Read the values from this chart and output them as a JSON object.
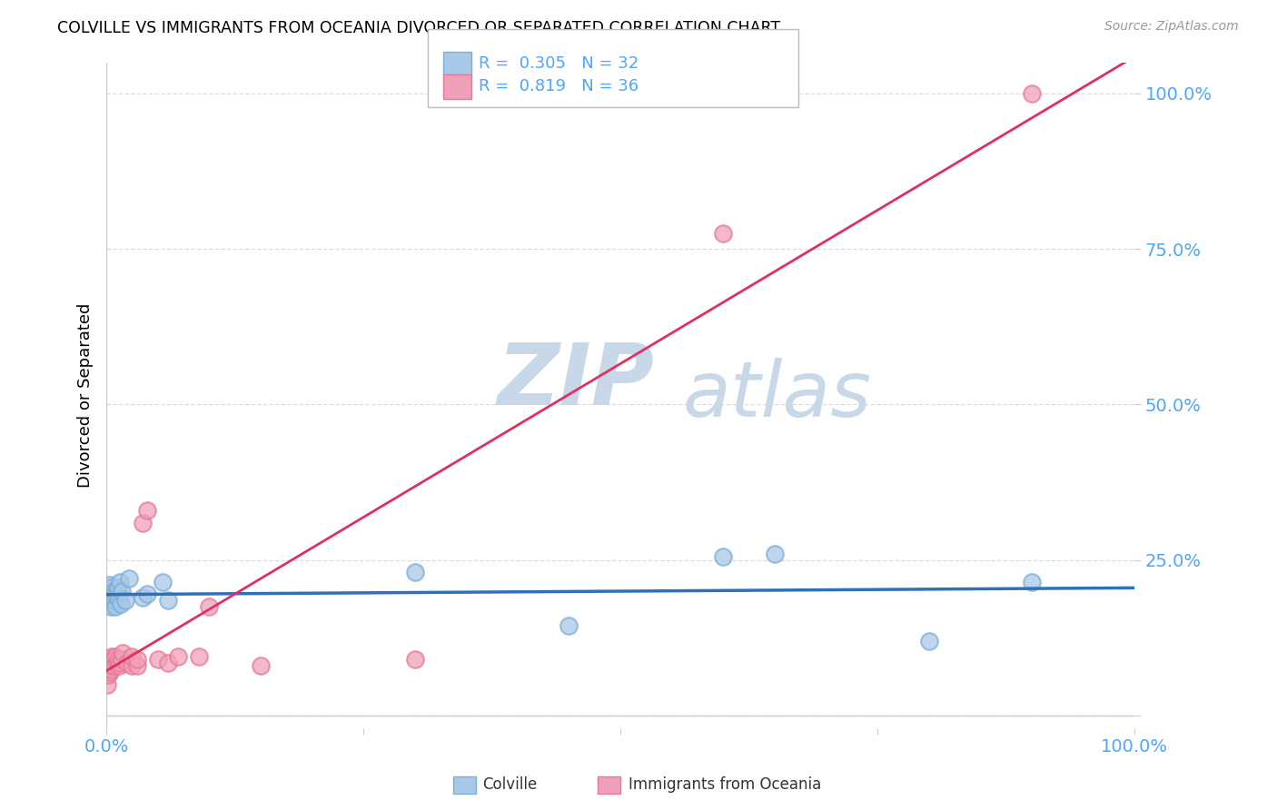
{
  "title": "COLVILLE VS IMMIGRANTS FROM OCEANIA DIVORCED OR SEPARATED CORRELATION CHART",
  "source": "Source: ZipAtlas.com",
  "ylabel": "Divorced or Separated",
  "legend_colville": "Colville",
  "legend_oceania": "Immigrants from Oceania",
  "r_colville": "0.305",
  "n_colville": "32",
  "r_oceania": "0.819",
  "n_oceania": "36",
  "colville_color": "#a8c8e8",
  "oceania_color": "#f0a0b8",
  "colville_edge_color": "#7baed6",
  "oceania_edge_color": "#e87898",
  "colville_line_color": "#3070b8",
  "oceania_line_color": "#e03060",
  "watermark_zip_color": "#c8d8e8",
  "watermark_atlas_color": "#c8d8e8",
  "ytick_color": "#4da6ff",
  "xtick_color": "#4da6ff",
  "colville_x": [
    0.001,
    0.002,
    0.003,
    0.003,
    0.004,
    0.004,
    0.005,
    0.005,
    0.006,
    0.007,
    0.008,
    0.008,
    0.009,
    0.01,
    0.01,
    0.011,
    0.012,
    0.013,
    0.014,
    0.015,
    0.018,
    0.022,
    0.035,
    0.04,
    0.055,
    0.06,
    0.3,
    0.45,
    0.6,
    0.65,
    0.8,
    0.9
  ],
  "colville_y": [
    0.185,
    0.195,
    0.18,
    0.21,
    0.195,
    0.175,
    0.185,
    0.205,
    0.19,
    0.2,
    0.195,
    0.185,
    0.175,
    0.2,
    0.19,
    0.205,
    0.185,
    0.215,
    0.18,
    0.2,
    0.185,
    0.22,
    0.19,
    0.195,
    0.215,
    0.185,
    0.23,
    0.145,
    0.255,
    0.26,
    0.12,
    0.215
  ],
  "oceania_x": [
    0.001,
    0.001,
    0.002,
    0.002,
    0.003,
    0.003,
    0.004,
    0.004,
    0.005,
    0.005,
    0.006,
    0.007,
    0.008,
    0.009,
    0.01,
    0.011,
    0.012,
    0.013,
    0.015,
    0.016,
    0.02,
    0.025,
    0.025,
    0.03,
    0.03,
    0.035,
    0.04,
    0.05,
    0.06,
    0.07,
    0.09,
    0.1,
    0.15,
    0.3,
    0.6,
    0.9
  ],
  "oceania_y": [
    0.05,
    0.08,
    0.065,
    0.09,
    0.07,
    0.085,
    0.075,
    0.09,
    0.08,
    0.095,
    0.085,
    0.09,
    0.08,
    0.095,
    0.085,
    0.09,
    0.08,
    0.085,
    0.09,
    0.1,
    0.085,
    0.08,
    0.095,
    0.08,
    0.09,
    0.31,
    0.33,
    0.09,
    0.085,
    0.095,
    0.095,
    0.175,
    0.08,
    0.09,
    0.775,
    1.0
  ],
  "xmin": 0.0,
  "xmax": 1.0,
  "ymin": -0.02,
  "ymax": 1.05,
  "yticks": [
    0.0,
    0.25,
    0.5,
    0.75,
    1.0
  ],
  "ytick_labels": [
    "",
    "25.0%",
    "50.0%",
    "75.0%",
    "100.0%"
  ],
  "xticks": [
    0.0,
    0.25,
    0.5,
    0.75,
    1.0
  ],
  "xtick_labels": [
    "0.0%",
    "",
    "",
    "",
    "100.0%"
  ],
  "grid_color": "#dddddd",
  "spine_color": "#cccccc"
}
